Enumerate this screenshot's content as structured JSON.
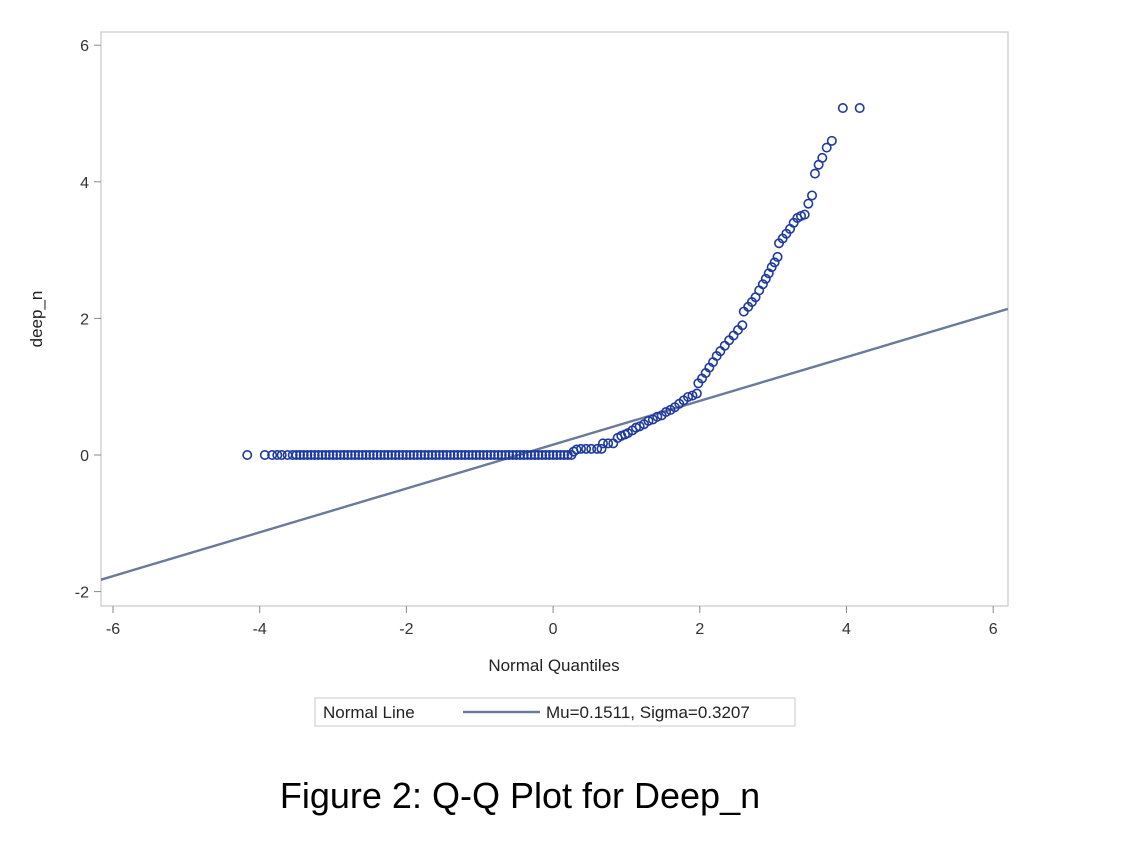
{
  "chart_data": {
    "type": "scatter",
    "xlabel": "Normal Quantiles",
    "ylabel": "deep_n",
    "xlim": [
      -6.2,
      6.2
    ],
    "ylim": [
      -2.2,
      6.2
    ],
    "x_ticks": [
      -6,
      -4,
      -2,
      0,
      2,
      4,
      6
    ],
    "y_ticks": [
      -2,
      0,
      2,
      4,
      6
    ],
    "grid": false,
    "marker_color": "#1f3a9e",
    "line_color": "#6b7a99",
    "normal_line": {
      "mu": 0.1511,
      "sigma": 0.3207
    },
    "legend": {
      "title": "Normal Line",
      "entry": "Mu=0.1511, Sigma=0.3207",
      "placement": "bottom-center"
    },
    "points": [
      [
        -4.17,
        0
      ],
      [
        -3.93,
        0
      ],
      [
        -3.83,
        0
      ],
      [
        -3.76,
        0
      ],
      [
        -3.7,
        0
      ],
      [
        -3.62,
        0
      ],
      [
        -3.55,
        0
      ],
      [
        0.28,
        0.05
      ],
      [
        0.32,
        0.08
      ],
      [
        0.38,
        0.09
      ],
      [
        0.45,
        0.09
      ],
      [
        0.52,
        0.09
      ],
      [
        0.6,
        0.09
      ],
      [
        0.66,
        0.09
      ],
      [
        0.68,
        0.17
      ],
      [
        0.75,
        0.17
      ],
      [
        0.82,
        0.17
      ],
      [
        0.88,
        0.25
      ],
      [
        0.93,
        0.28
      ],
      [
        0.98,
        0.3
      ],
      [
        1.02,
        0.32
      ],
      [
        1.08,
        0.36
      ],
      [
        1.13,
        0.4
      ],
      [
        1.18,
        0.42
      ],
      [
        1.24,
        0.45
      ],
      [
        1.3,
        0.5
      ],
      [
        1.36,
        0.52
      ],
      [
        1.42,
        0.56
      ],
      [
        1.48,
        0.58
      ],
      [
        1.54,
        0.63
      ],
      [
        1.6,
        0.66
      ],
      [
        1.66,
        0.7
      ],
      [
        1.72,
        0.75
      ],
      [
        1.78,
        0.8
      ],
      [
        1.84,
        0.85
      ],
      [
        1.9,
        0.87
      ],
      [
        1.96,
        0.9
      ],
      [
        1.98,
        1.05
      ],
      [
        2.03,
        1.12
      ],
      [
        2.08,
        1.2
      ],
      [
        2.13,
        1.28
      ],
      [
        2.18,
        1.36
      ],
      [
        2.23,
        1.45
      ],
      [
        2.28,
        1.52
      ],
      [
        2.34,
        1.6
      ],
      [
        2.4,
        1.68
      ],
      [
        2.46,
        1.75
      ],
      [
        2.52,
        1.83
      ],
      [
        2.58,
        1.9
      ],
      [
        2.6,
        2.1
      ],
      [
        2.66,
        2.17
      ],
      [
        2.71,
        2.24
      ],
      [
        2.76,
        2.31
      ],
      [
        2.81,
        2.41
      ],
      [
        2.86,
        2.5
      ],
      [
        2.9,
        2.58
      ],
      [
        2.94,
        2.66
      ],
      [
        2.98,
        2.75
      ],
      [
        3.02,
        2.82
      ],
      [
        3.06,
        2.9
      ],
      [
        3.08,
        3.1
      ],
      [
        3.13,
        3.17
      ],
      [
        3.18,
        3.24
      ],
      [
        3.23,
        3.31
      ],
      [
        3.28,
        3.4
      ],
      [
        3.33,
        3.47
      ],
      [
        3.38,
        3.5
      ],
      [
        3.43,
        3.52
      ],
      [
        3.48,
        3.68
      ],
      [
        3.53,
        3.8
      ],
      [
        3.57,
        4.12
      ],
      [
        3.62,
        4.25
      ],
      [
        3.67,
        4.35
      ],
      [
        3.73,
        4.5
      ],
      [
        3.8,
        4.6
      ],
      [
        3.95,
        5.08
      ],
      [
        4.18,
        5.08
      ]
    ]
  },
  "caption": "Figure 2: Q-Q Plot for Deep_n"
}
